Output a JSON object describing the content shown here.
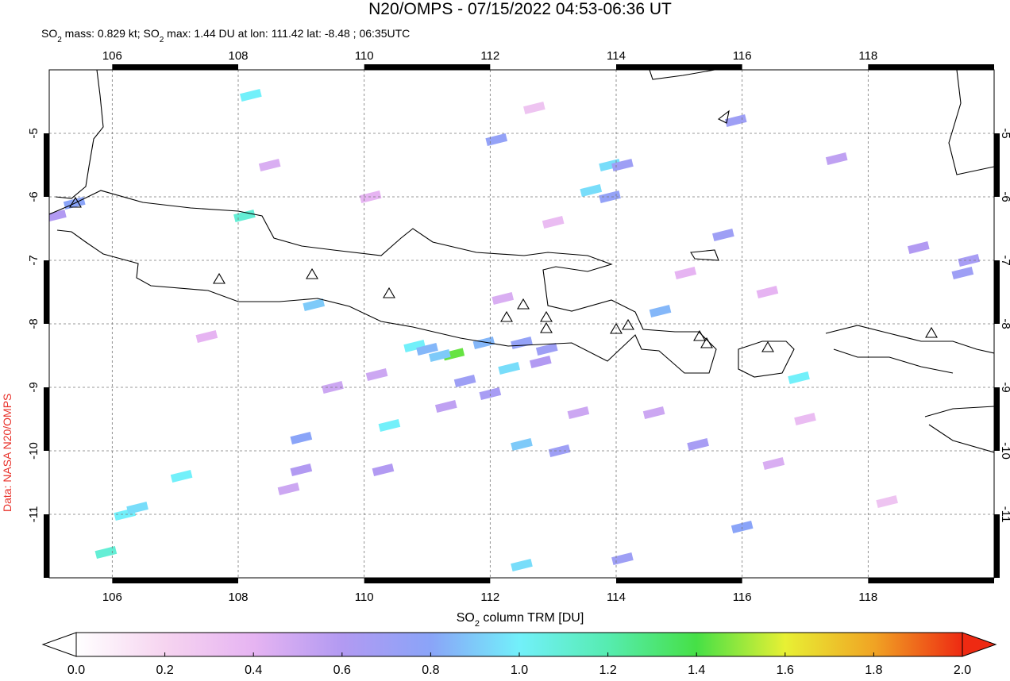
{
  "chart_data": {
    "type": "map",
    "title": "N20/OMPS - 07/15/2022 04:53-06:36 UT",
    "subtitle": [
      "SO",
      "2",
      " mass: 0.829 kt; SO",
      "2",
      " max: 1.44 DU at lon: 111.42 lat: -8.48 ; 06:35UTC"
    ],
    "credit": "Data: NASA N20/OMPS",
    "xlim": [
      105,
      120
    ],
    "ylim": [
      -12,
      -4
    ],
    "xticks": [
      106,
      108,
      110,
      112,
      114,
      116,
      118
    ],
    "yticks": [
      -5,
      -6,
      -7,
      -8,
      -9,
      -10,
      -11
    ],
    "grid": true,
    "pixels": {
      "lon": [
        111.42,
        110.8,
        111.0,
        111.9,
        112.5,
        112.9,
        111.2,
        112.3,
        113.9,
        114.1,
        113.6,
        113.9,
        115.7,
        115.9,
        114.7,
        116.9,
        116.0,
        112.5,
        112.1,
        108.2,
        108.1,
        109.2,
        105.4,
        105.1,
        110.4,
        109.0,
        107.1,
        106.2,
        106.4,
        105.9,
        112.5,
        114.1,
        119.5,
        119.6,
        117.5,
        118.8,
        115.3,
        113.1,
        110.3,
        109.0,
        107.5,
        108.5,
        110.1,
        116.5,
        117.0,
        112.7,
        118.3,
        111.6,
        112.0,
        112.8,
        113.4,
        111.3,
        110.2,
        112.2,
        109.5,
        108.8,
        115.1,
        114.6,
        113.0,
        116.4
      ],
      "lat": [
        -8.48,
        -8.35,
        -8.4,
        -8.3,
        -8.3,
        -8.4,
        -8.5,
        -8.7,
        -5.5,
        -5.5,
        -5.9,
        -6.0,
        -6.6,
        -4.8,
        -7.8,
        -8.85,
        -11.2,
        -9.9,
        -5.1,
        -4.4,
        -6.3,
        -7.7,
        -6.1,
        -6.3,
        -9.6,
        -9.8,
        -10.4,
        -11.0,
        -10.9,
        -11.6,
        -11.8,
        -11.7,
        -7.2,
        -7.0,
        -5.4,
        -6.8,
        -9.9,
        -10.0,
        -10.3,
        -10.3,
        -8.2,
        -5.5,
        -6.0,
        -10.2,
        -9.5,
        -4.6,
        -10.8,
        -8.9,
        -9.1,
        -8.6,
        -9.4,
        -9.3,
        -8.8,
        -7.6,
        -9.0,
        -10.6,
        -7.2,
        -9.4,
        -6.4,
        -7.5
      ],
      "values": [
        1.44,
        1.0,
        0.85,
        0.85,
        0.75,
        0.7,
        0.9,
        0.95,
        0.95,
        0.7,
        0.95,
        0.75,
        0.7,
        0.7,
        0.85,
        1.0,
        0.8,
        0.9,
        0.75,
        1.0,
        1.1,
        0.9,
        0.8,
        0.6,
        1.0,
        0.8,
        1.0,
        1.0,
        0.95,
        1.1,
        0.95,
        0.7,
        0.7,
        0.65,
        0.55,
        0.6,
        0.65,
        0.7,
        0.6,
        0.6,
        0.4,
        0.45,
        0.4,
        0.45,
        0.35,
        0.3,
        0.3,
        0.7,
        0.65,
        0.6,
        0.5,
        0.55,
        0.5,
        0.45,
        0.5,
        0.5,
        0.4,
        0.5,
        0.35,
        0.4
      ]
    },
    "colorbar": {
      "label": [
        "SO",
        "2",
        " column TRM [DU]"
      ],
      "lim": [
        0,
        2
      ],
      "ticks": [
        {
          "value": 0,
          "label": "0.0"
        },
        0.2,
        0.4,
        0.6,
        0.8,
        {
          "value": 1,
          "label": "1.0"
        },
        1.2,
        1.4,
        1.6,
        1.8,
        {
          "value": 2,
          "label": "2.0"
        }
      ],
      "colors": [
        "#ffffff",
        "#f6d4f0",
        "#e6b4f2",
        "#b29af2",
        "#8aa4f8",
        "#72f0fa",
        "#56ecb0",
        "#46e046",
        "#e8f034",
        "#f0a424",
        "#ee2a12"
      ]
    }
  }
}
